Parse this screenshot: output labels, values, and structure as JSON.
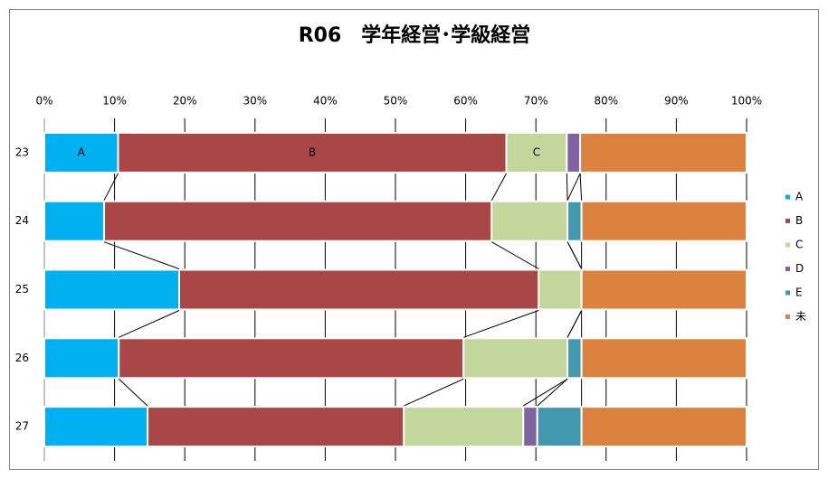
{
  "chart_data": {
    "type": "stacked_barh",
    "title": "R06　学年経営･学級経営",
    "categories": [
      "23",
      "24",
      "25",
      "26",
      "27"
    ],
    "series": [
      {
        "name": "A",
        "color": "#00b0f0",
        "values": [
          10.5,
          8.5,
          19.2,
          10.6,
          14.7
        ]
      },
      {
        "name": "B",
        "color": "#a84745",
        "values": [
          55.3,
          55.2,
          51.2,
          49.1,
          36.5
        ]
      },
      {
        "name": "C",
        "color": "#c3d69b",
        "values": [
          8.6,
          10.8,
          6.1,
          14.8,
          17.0
        ]
      },
      {
        "name": "D",
        "color": "#8064a2",
        "values": [
          1.9,
          0,
          0,
          0,
          2.0
        ]
      },
      {
        "name": "E",
        "color": "#4198af",
        "values": [
          0,
          2.0,
          0,
          2.0,
          6.3
        ]
      },
      {
        "name": "未",
        "color": "#dc823f",
        "values": [
          23.7,
          23.5,
          23.5,
          23.5,
          23.5
        ]
      }
    ],
    "labeled_row": 0,
    "xlim": [
      0,
      100
    ],
    "xticks": [
      {
        "value": 0,
        "label": "0%"
      },
      {
        "value": 10,
        "label": "10%"
      },
      {
        "value": 20,
        "label": "20%"
      },
      {
        "value": 30,
        "label": "30%"
      },
      {
        "value": 40,
        "label": "40%"
      },
      {
        "value": 50,
        "label": "50%"
      },
      {
        "value": 60,
        "label": "60%"
      },
      {
        "value": 70,
        "label": "70%"
      },
      {
        "value": 80,
        "label": "80%"
      },
      {
        "value": 90,
        "label": "90%"
      },
      {
        "value": 100,
        "label": "100%"
      }
    ],
    "grid": true,
    "legend": "right"
  }
}
